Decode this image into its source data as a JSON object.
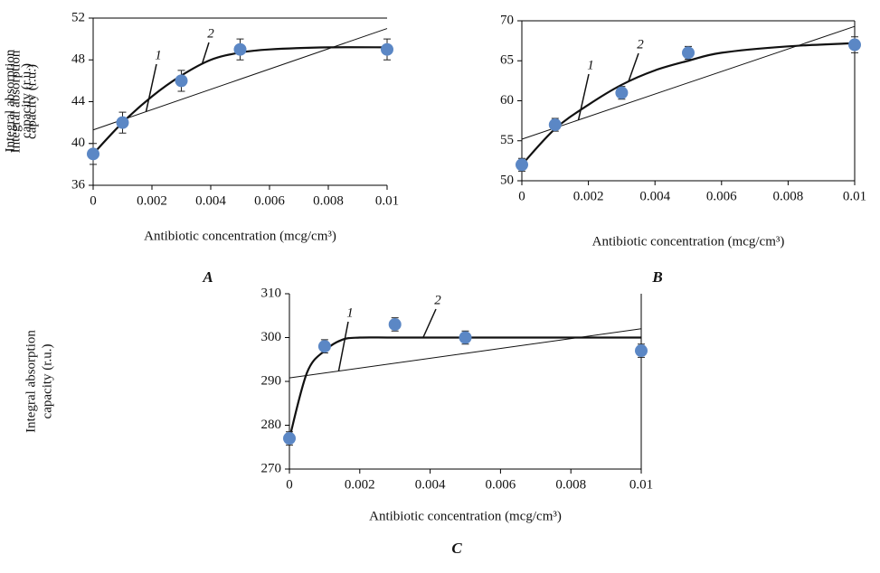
{
  "chart_data": [
    {
      "type": "scatter",
      "label": "A",
      "xlabel": "Antibiotic concentration (mcg/cm³)",
      "ylabel": [
        "Integral absorption",
        "capacity  (r.u.)"
      ],
      "x": [
        0,
        0.001,
        0.003,
        0.005,
        0.01
      ],
      "values": [
        39,
        42,
        46,
        49,
        49
      ],
      "errors": [
        1,
        1,
        1,
        1,
        1
      ],
      "color": "#5b87c5",
      "xlim": [
        0,
        0.01
      ],
      "ylim": [
        36,
        52
      ],
      "xticks": [
        0,
        0.002,
        0.004,
        0.006,
        0.008,
        0.01
      ],
      "yticks": [
        36,
        40,
        44,
        48,
        52
      ],
      "lines": [
        {
          "label": "1",
          "x": [
            0,
            0.01
          ],
          "values": [
            41.3,
            51
          ]
        },
        {
          "label": "2",
          "x": [
            0,
            0.001,
            0.002,
            0.003,
            0.004,
            0.005,
            0.006,
            0.008,
            0.01
          ],
          "values": [
            39,
            42,
            44.5,
            46.5,
            48,
            48.7,
            49,
            49.2,
            49.2
          ]
        }
      ]
    },
    {
      "type": "scatter",
      "label": "B",
      "xlabel": "Antibiotic concentration (mcg/cm³)",
      "ylabel": [
        "Integral absorption",
        "capacity  (r.u.)"
      ],
      "x": [
        0,
        0.001,
        0.003,
        0.005,
        0.01
      ],
      "values": [
        52,
        57,
        61,
        66,
        67
      ],
      "errors": [
        0.8,
        0.8,
        0.8,
        0.8,
        1
      ],
      "color": "#5b87c5",
      "xlim": [
        0,
        0.01
      ],
      "ylim": [
        50,
        70
      ],
      "xticks": [
        0,
        0.002,
        0.004,
        0.006,
        0.008,
        0.01
      ],
      "yticks": [
        50,
        55,
        60,
        65,
        70
      ],
      "lines": [
        {
          "label": "1",
          "x": [
            0,
            0.01
          ],
          "values": [
            55.2,
            69.3
          ]
        },
        {
          "label": "2",
          "x": [
            0,
            0.001,
            0.002,
            0.003,
            0.004,
            0.005,
            0.006,
            0.008,
            0.01
          ],
          "values": [
            52,
            56.5,
            59.5,
            62,
            63.8,
            65,
            66,
            66.8,
            67.2
          ]
        }
      ]
    },
    {
      "type": "scatter",
      "label": "C",
      "xlabel": "Antibiotic concentration  (mcg/cm³)",
      "ylabel": [
        "Integral absorption",
        "capacity  (r.u.)"
      ],
      "x": [
        0,
        0.001,
        0.003,
        0.005,
        0.01
      ],
      "values": [
        277,
        298,
        303,
        300,
        297
      ],
      "errors": [
        1.5,
        1.5,
        1.5,
        1.5,
        1.5
      ],
      "color": "#5b87c5",
      "xlim": [
        0,
        0.01
      ],
      "ylim": [
        270,
        310
      ],
      "xticks": [
        0,
        0.002,
        0.004,
        0.006,
        0.008,
        0.01
      ],
      "yticks": [
        270,
        280,
        290,
        300,
        310
      ],
      "lines": [
        {
          "label": "1",
          "x": [
            0,
            0.01
          ],
          "values": [
            290.8,
            302
          ]
        },
        {
          "label": "2",
          "x": [
            0,
            0.0005,
            0.001,
            0.0015,
            0.002,
            0.003,
            0.005,
            0.01
          ],
          "values": [
            277,
            292,
            297,
            299.5,
            300,
            300,
            300,
            300
          ]
        }
      ]
    }
  ]
}
